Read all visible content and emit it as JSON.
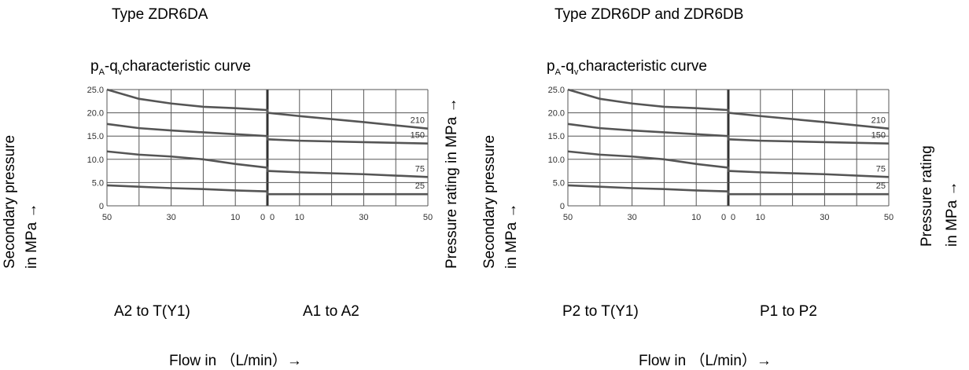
{
  "charts": [
    {
      "type_title": "Type ZDR6DA",
      "curve_title": "p",
      "curve_title_sub1": "A",
      "curve_title_mid": "-q",
      "curve_title_sub2": "v",
      "curve_title_rest": "characteristic curve",
      "ylabel_line1": "Secondary pressure",
      "ylabel_line2": "in MPa →",
      "right_label": "Pressure rating in MPa →",
      "dir_left": "A2 to T(Y1)",
      "dir_right": "A1 to A2",
      "flow_label": "Flow in （L/min）→"
    },
    {
      "type_title": "Type ZDR6DP and ZDR6DB",
      "curve_title": "p",
      "curve_title_sub1": "A",
      "curve_title_mid": "-q",
      "curve_title_sub2": "v",
      "curve_title_rest": "characteristic curve",
      "ylabel_line1": "Secondary pressure",
      "ylabel_line2": "in MPa →",
      "right_label_line1": "Pressure rating",
      "right_label_line2": "in MPa →",
      "dir_left": "P2 to T(Y1)",
      "dir_right": "P1 to P2",
      "flow_label": "Flow in （L/min）→"
    }
  ],
  "chart_data": [
    {
      "type": "line",
      "title": "pA-qv characteristic curve",
      "x_axis": "flow in L/min, left half reverse flow (50→0), right half forward flow (0→50)",
      "x_ticks": [
        "50",
        "30",
        "10",
        "0",
        "0",
        "10",
        "30",
        "50"
      ],
      "y_ticks": [
        "25.0",
        "20.0",
        "15.0",
        "10.0",
        "5.0",
        "0"
      ],
      "ylim": [
        0,
        25
      ],
      "grid": true,
      "series": [
        {
          "name": "210",
          "left": [
            [
              50,
              25.0
            ],
            [
              40,
              23.0
            ],
            [
              30,
              22.0
            ],
            [
              20,
              21.3
            ],
            [
              10,
              21.0
            ],
            [
              0,
              20.6
            ]
          ],
          "right": [
            [
              0,
              20.0
            ],
            [
              10,
              19.3
            ],
            [
              30,
              18.0
            ],
            [
              50,
              16.6
            ]
          ]
        },
        {
          "name": "150",
          "left": [
            [
              50,
              17.6
            ],
            [
              40,
              16.7
            ],
            [
              30,
              16.2
            ],
            [
              20,
              15.8
            ],
            [
              10,
              15.4
            ],
            [
              0,
              15.0
            ]
          ],
          "right": [
            [
              0,
              14.3
            ],
            [
              10,
              14.0
            ],
            [
              30,
              13.7
            ],
            [
              50,
              13.4
            ]
          ]
        },
        {
          "name": "75",
          "left": [
            [
              50,
              11.7
            ],
            [
              40,
              11.0
            ],
            [
              30,
              10.6
            ],
            [
              20,
              10.0
            ],
            [
              10,
              9.0
            ],
            [
              0,
              8.2
            ]
          ],
          "right": [
            [
              0,
              7.5
            ],
            [
              10,
              7.2
            ],
            [
              30,
              6.8
            ],
            [
              50,
              6.2
            ]
          ]
        },
        {
          "name": "25",
          "left": [
            [
              50,
              4.4
            ],
            [
              40,
              4.1
            ],
            [
              30,
              3.8
            ],
            [
              20,
              3.6
            ],
            [
              10,
              3.3
            ],
            [
              0,
              3.1
            ]
          ],
          "right": [
            [
              0,
              2.5
            ],
            [
              10,
              2.5
            ],
            [
              30,
              2.5
            ],
            [
              50,
              2.5
            ]
          ]
        }
      ]
    },
    {
      "type": "line",
      "title": "pA-qv characteristic curve",
      "x_axis": "flow in L/min, left half reverse flow (50→0), right half forward flow (0→50)",
      "x_ticks": [
        "50",
        "30",
        "10",
        "0",
        "0",
        "10",
        "30",
        "50"
      ],
      "y_ticks": [
        "25.0",
        "20.0",
        "15.0",
        "10.0",
        "5.0",
        "0"
      ],
      "ylim": [
        0,
        25
      ],
      "grid": true,
      "series": [
        {
          "name": "210",
          "left": [
            [
              50,
              25.0
            ],
            [
              40,
              23.0
            ],
            [
              30,
              22.0
            ],
            [
              20,
              21.3
            ],
            [
              10,
              21.0
            ],
            [
              0,
              20.6
            ]
          ],
          "right": [
            [
              0,
              20.0
            ],
            [
              10,
              19.3
            ],
            [
              30,
              18.0
            ],
            [
              50,
              16.6
            ]
          ]
        },
        {
          "name": "150",
          "left": [
            [
              50,
              17.6
            ],
            [
              40,
              16.7
            ],
            [
              30,
              16.2
            ],
            [
              20,
              15.8
            ],
            [
              10,
              15.4
            ],
            [
              0,
              15.0
            ]
          ],
          "right": [
            [
              0,
              14.3
            ],
            [
              10,
              14.0
            ],
            [
              30,
              13.7
            ],
            [
              50,
              13.4
            ]
          ]
        },
        {
          "name": "75",
          "left": [
            [
              50,
              11.7
            ],
            [
              40,
              11.0
            ],
            [
              30,
              10.6
            ],
            [
              20,
              10.0
            ],
            [
              10,
              9.0
            ],
            [
              0,
              8.2
            ]
          ],
          "right": [
            [
              0,
              7.5
            ],
            [
              10,
              7.2
            ],
            [
              30,
              6.8
            ],
            [
              50,
              6.2
            ]
          ]
        },
        {
          "name": "25",
          "left": [
            [
              50,
              4.4
            ],
            [
              40,
              4.1
            ],
            [
              30,
              3.8
            ],
            [
              20,
              3.6
            ],
            [
              10,
              3.3
            ],
            [
              0,
              3.1
            ]
          ],
          "right": [
            [
              0,
              2.5
            ],
            [
              10,
              2.5
            ],
            [
              30,
              2.5
            ],
            [
              50,
              2.5
            ]
          ]
        }
      ]
    }
  ],
  "colors": {
    "grid": "#555555",
    "curve": "#555555",
    "text": "#000000"
  }
}
